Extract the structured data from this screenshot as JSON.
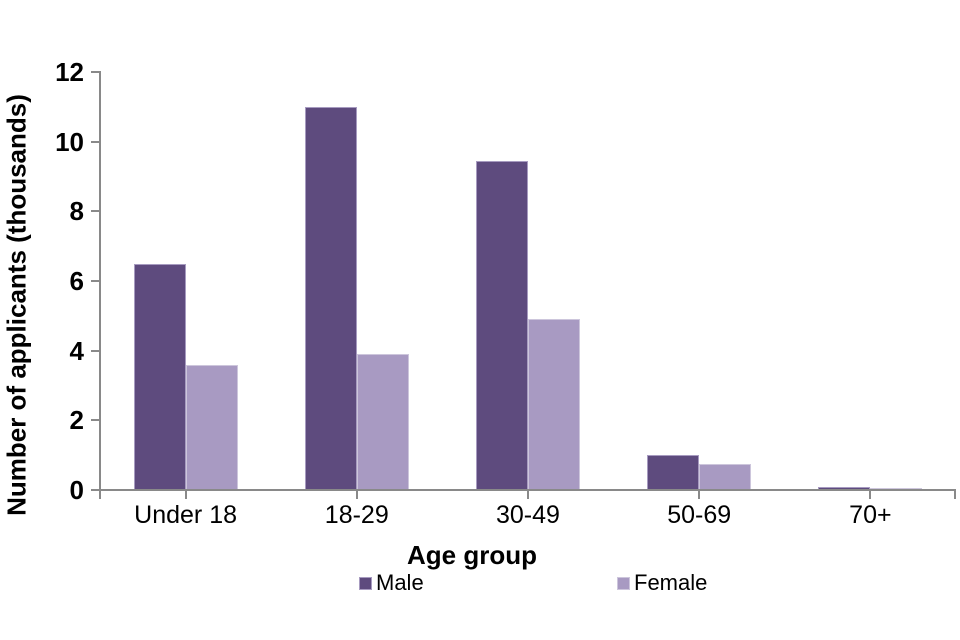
{
  "chart_data": {
    "type": "bar",
    "title": "",
    "categories": [
      "Under 18",
      "18-29",
      "30-49",
      "50-69",
      "70+"
    ],
    "series": [
      {
        "name": "Male",
        "color": "#5e4b7e",
        "border_color": "#a79bc0",
        "values": [
          6.5,
          11.0,
          9.45,
          1.0,
          0.08
        ]
      },
      {
        "name": "Female",
        "color": "#a89ac2",
        "border_color": "#cdc6dc",
        "values": [
          3.6,
          3.9,
          4.9,
          0.75,
          0.07
        ]
      }
    ],
    "xlabel": "Age group",
    "ylabel": "Number of applicants (thousands)",
    "ylim": [
      0,
      12
    ],
    "yticks": [
      0,
      2,
      4,
      6,
      8,
      10,
      12
    ],
    "grid": false,
    "legend_position": "bottom",
    "axis_color": "#898989",
    "text_color": "#000000"
  }
}
